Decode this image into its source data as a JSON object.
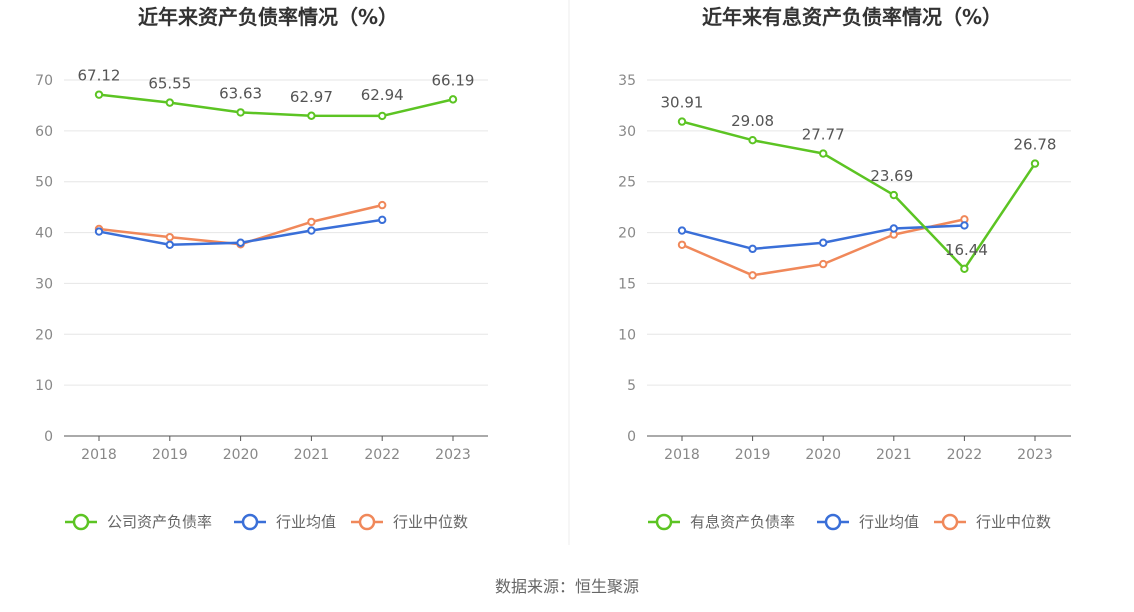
{
  "source": "数据来源：恒生聚源",
  "chart_data": [
    {
      "type": "line",
      "title": "近年来资产负债率情况（%）",
      "categories": [
        "2018",
        "2019",
        "2020",
        "2021",
        "2022",
        "2023"
      ],
      "ylim": [
        0,
        70
      ],
      "yticks": [
        0,
        10,
        20,
        30,
        40,
        50,
        60,
        70
      ],
      "grid": true,
      "legend_position": "bottom",
      "series": [
        {
          "name": "公司资产负债率",
          "color": "#5cc423",
          "show_labels": true,
          "values": [
            67.12,
            65.55,
            63.63,
            62.97,
            62.94,
            66.19
          ]
        },
        {
          "name": "行业均值",
          "color": "#3a6fd8",
          "show_labels": false,
          "values": [
            40.2,
            37.6,
            38.0,
            40.4,
            42.5,
            null
          ]
        },
        {
          "name": "行业中位数",
          "color": "#f0885a",
          "show_labels": false,
          "values": [
            40.7,
            39.1,
            37.7,
            42.1,
            45.4,
            null
          ]
        }
      ]
    },
    {
      "type": "line",
      "title": "近年来有息资产负债率情况（%）",
      "categories": [
        "2018",
        "2019",
        "2020",
        "2021",
        "2022",
        "2023"
      ],
      "ylim": [
        0,
        35
      ],
      "yticks": [
        0,
        5,
        10,
        15,
        20,
        25,
        30,
        35
      ],
      "grid": true,
      "legend_position": "bottom",
      "series": [
        {
          "name": "有息资产负债率",
          "color": "#5cc423",
          "show_labels": true,
          "values": [
            30.91,
            29.08,
            27.77,
            23.69,
            16.44,
            26.78
          ]
        },
        {
          "name": "行业均值",
          "color": "#3a6fd8",
          "show_labels": false,
          "values": [
            20.2,
            18.4,
            19.0,
            20.4,
            20.7,
            null
          ]
        },
        {
          "name": "行业中位数",
          "color": "#f0885a",
          "show_labels": false,
          "values": [
            18.8,
            15.8,
            16.9,
            19.8,
            21.3,
            null
          ]
        }
      ]
    }
  ]
}
